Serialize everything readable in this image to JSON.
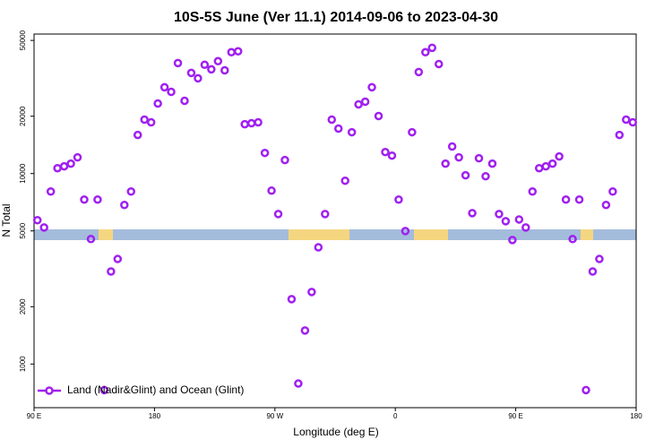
{
  "chart_data": {
    "type": "scatter",
    "title": "10S-5S June (Ver 11.1)   2014-09-06 to 2023-04-30",
    "x_label": "Longitude (deg E)",
    "y_label": "N Total",
    "log_y": true,
    "legend": "bottom-left",
    "xlim": [
      90,
      540
    ],
    "xticks": [
      {
        "value": 90,
        "label": "90 E"
      },
      180,
      {
        "value": 270,
        "label": "90 W"
      },
      {
        "value": 360,
        "label": "0"
      },
      {
        "value": 450,
        "label": "90 E"
      },
      {
        "value": 540,
        "label": "180"
      }
    ],
    "ylim": [
      590,
      54000
    ],
    "yticks": [
      1000,
      2000,
      5000,
      10000,
      20000,
      50000
    ],
    "series": [
      {
        "name": "Land (Nadir&Glint) and Ocean (Glint)",
        "color": "#a020f0",
        "x": [
          92.5,
          97.5,
          102.5,
          107.5,
          112.5,
          117.5,
          122.5,
          127.5,
          132.5,
          137.5,
          142.5,
          147.5,
          152.5,
          157.5,
          162.5,
          167.5,
          172.5,
          177.5,
          182.5,
          187.5,
          192.5,
          197.5,
          202.5,
          207.5,
          212.5,
          217.5,
          222.5,
          227.5,
          232.5,
          237.5,
          242.5,
          247.5,
          252.5,
          257.5,
          262.5,
          267.5,
          272.5,
          277.5,
          282.5,
          287.5,
          292.5,
          297.5,
          302.5,
          307.5,
          312.5,
          317.5,
          322.5,
          327.5,
          332.5,
          337.5,
          342.5,
          347.5,
          352.5,
          357.5,
          362.5,
          367.5,
          372.5,
          377.5,
          382.5,
          387.5,
          392.5,
          397.5,
          402.5,
          407.5,
          412.5,
          417.5,
          422.5,
          427.5,
          432.5,
          437.5,
          442.5,
          447.5,
          452.5,
          457.5,
          462.5,
          467.5,
          472.5,
          477.5,
          482.5,
          487.5,
          492.5,
          497.5,
          502.5,
          507.5,
          512.5,
          517.5,
          522.5,
          527.5,
          532.5,
          537.5
        ],
        "values": [
          5690,
          5210,
          8050,
          10670,
          10910,
          11270,
          12160,
          7300,
          4530,
          7300,
          730,
          3060,
          3560,
          6840,
          8050,
          15950,
          19190,
          18580,
          23330,
          28380,
          26860,
          38020,
          24100,
          33740,
          31620,
          37240,
          35240,
          38900,
          34830,
          43350,
          43850,
          18160,
          18370,
          18580,
          12830,
          8130,
          6130,
          11770,
          2190,
          790,
          1500,
          2390,
          4100,
          6130,
          19190,
          17220,
          9170,
          16480,
          23070,
          23840,
          28380,
          20040,
          12970,
          12420,
          7300,
          4990,
          16480,
          34120,
          43350,
          45710,
          37580,
          11270,
          13870,
          12160,
          9790,
          6200,
          12030,
          9680,
          11270,
          6130,
          5620,
          4480,
          5740,
          5210,
          8050,
          10670,
          10910,
          11270,
          12300,
          7300,
          4530,
          7300,
          730,
          3060,
          3560,
          6840,
          8050,
          15950,
          19190,
          18580
        ]
      }
    ]
  }
}
